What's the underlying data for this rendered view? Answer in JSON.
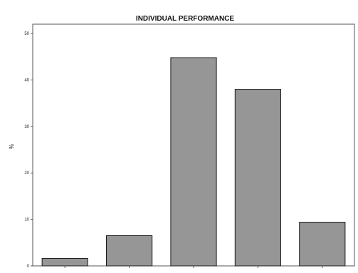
{
  "chart_data": {
    "type": "bar",
    "title": "INDIVIDUAL PERFORMANCE",
    "xlabel": "",
    "ylabel": "%",
    "ylim": [
      0,
      52
    ],
    "yticks": [
      0,
      10,
      20,
      30,
      40,
      50
    ],
    "categories": [
      "",
      "",
      "",
      "",
      ""
    ],
    "values": [
      1.6,
      6.5,
      44.8,
      38.0,
      9.4
    ],
    "grid": false,
    "legend": "none",
    "colors": {
      "bar_fill": "#969696",
      "bar_stroke": "#1a1a1a",
      "frame": "#555555",
      "background": "#ffffff"
    }
  }
}
